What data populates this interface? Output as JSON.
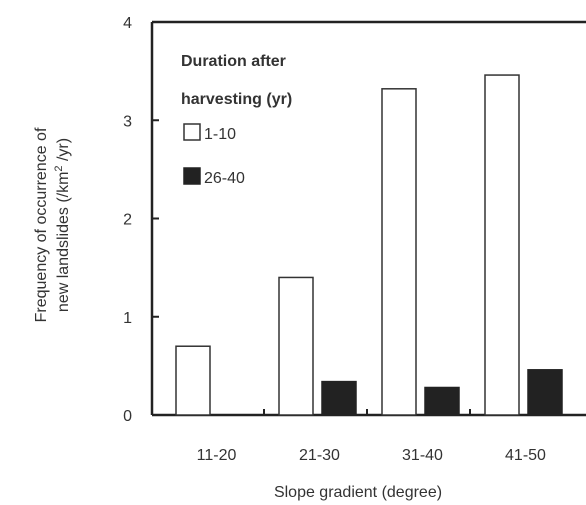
{
  "chart_data": {
    "type": "bar",
    "categories": [
      "11-20",
      "21-30",
      "31-40",
      "41-50"
    ],
    "series": [
      {
        "name": "1-10",
        "values": [
          0.7,
          1.4,
          3.32,
          3.46
        ],
        "color": "#ffffff"
      },
      {
        "name": "26-40",
        "values": [
          null,
          0.34,
          0.28,
          0.46
        ],
        "color": "#222222"
      }
    ],
    "xlabel": "Slope gradient (degree)",
    "ylabel_line1": "Frequency of occurrence of",
    "ylabel_line2": "new landslides (/km",
    "ylabel_sup": "2",
    "ylabel_line2_end": " /yr)",
    "ylim": [
      0,
      4
    ],
    "yticks": [
      0,
      1,
      2,
      3,
      4
    ],
    "legend": {
      "title_line1": "Duration after",
      "title_line2": "harvesting (yr)",
      "placement": "top-left"
    },
    "grid": false
  }
}
